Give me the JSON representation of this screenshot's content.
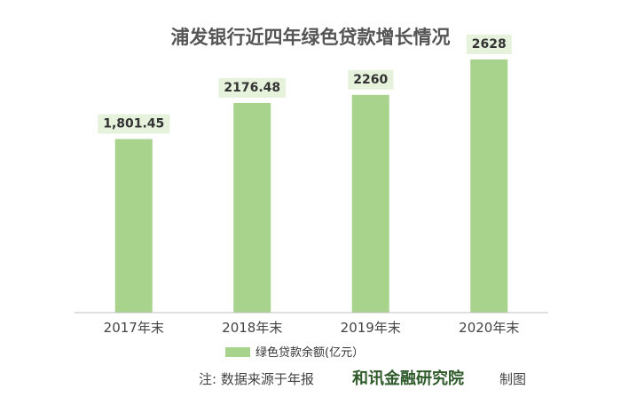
{
  "chart_data": {
    "type": "bar",
    "title": "浦发银行近四年绿色贷款增长情况",
    "categories": [
      "2017年末",
      "2018年末",
      "2019年末",
      "2020年末"
    ],
    "series": [
      {
        "name": "绿色贷款余额(亿元）",
        "values": [
          1801.45,
          2176.48,
          2260,
          2628
        ],
        "labels": [
          "1,801.45",
          "2176.48",
          "2260",
          "2628"
        ]
      }
    ],
    "xlabel": "",
    "ylabel": "",
    "ylim": [
      0,
      2950
    ],
    "grid": false,
    "legend": "bottom",
    "colors": {
      "bar": "#a7d38c",
      "label_bg": "#e6f2dc",
      "axis": "#bfbfbf"
    }
  },
  "footer": {
    "note": "注:  数据来源于年报",
    "brand": "和讯金融研究院",
    "suffix": "制图"
  }
}
